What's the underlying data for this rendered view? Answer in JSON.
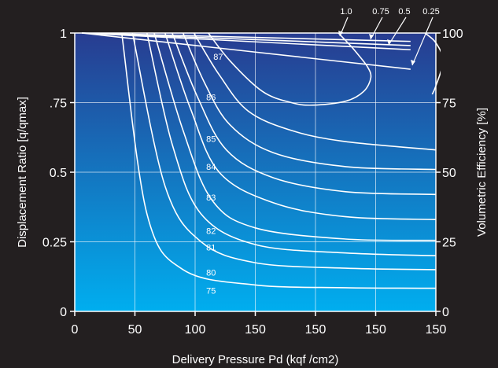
{
  "chart_data": {
    "type": "line",
    "title": "",
    "xlabel": "Delivery Pressure Pd (kqf /cm2)",
    "ylabel": "Displacement Ratio [q/qmax]",
    "y2label": "Volumetric Efficiency [%]",
    "x_tick_labels": [
      "0",
      "50",
      "100",
      "150",
      "150",
      "150",
      "150"
    ],
    "y_tick_labels": [
      "0",
      "0.25",
      "0.5",
      ".75",
      "1"
    ],
    "y2_tick_labels": [
      "0",
      "25",
      "50",
      "75",
      "100"
    ],
    "ylim": [
      0,
      1
    ],
    "y2lim": [
      0,
      100
    ],
    "grid": true,
    "background_gradient": [
      "#283c90",
      "#00aeef"
    ],
    "line_color": "#ffffff",
    "efficiency_contours": [
      {
        "label": "75",
        "points": [
          [
            0.13,
            1.0
          ],
          [
            0.2,
            0.35
          ],
          [
            0.3,
            0.15
          ],
          [
            0.5,
            0.095
          ],
          [
            0.75,
            0.085
          ],
          [
            1.0,
            0.083
          ]
        ],
        "label_at": [
          0.36,
          0.075
        ]
      },
      {
        "label": "80",
        "points": [
          [
            0.16,
            1.0
          ],
          [
            0.25,
            0.45
          ],
          [
            0.35,
            0.25
          ],
          [
            0.5,
            0.175
          ],
          [
            0.75,
            0.155
          ],
          [
            1.0,
            0.15
          ]
        ],
        "label_at": [
          0.36,
          0.14
        ]
      },
      {
        "label": "81",
        "points": [
          [
            0.2,
            1.0
          ],
          [
            0.27,
            0.6
          ],
          [
            0.35,
            0.35
          ],
          [
            0.5,
            0.24
          ],
          [
            0.75,
            0.21
          ],
          [
            1.0,
            0.2
          ]
        ],
        "label_at": [
          0.36,
          0.23
        ]
      },
      {
        "label": "82",
        "points": [
          [
            0.22,
            1.0
          ],
          [
            0.3,
            0.65
          ],
          [
            0.38,
            0.4
          ],
          [
            0.5,
            0.3
          ],
          [
            0.75,
            0.26
          ],
          [
            1.0,
            0.255
          ]
        ],
        "label_at": [
          0.36,
          0.29
        ]
      },
      {
        "label": "83",
        "points": [
          [
            0.25,
            1.0
          ],
          [
            0.32,
            0.73
          ],
          [
            0.4,
            0.5
          ],
          [
            0.55,
            0.39
          ],
          [
            0.75,
            0.34
          ],
          [
            1.0,
            0.33
          ]
        ],
        "label_at": [
          0.36,
          0.41
        ]
      },
      {
        "label": "84",
        "points": [
          [
            0.27,
            1.0
          ],
          [
            0.34,
            0.77
          ],
          [
            0.42,
            0.58
          ],
          [
            0.55,
            0.48
          ],
          [
            0.75,
            0.43
          ],
          [
            1.0,
            0.42
          ]
        ],
        "label_at": [
          0.36,
          0.52
        ]
      },
      {
        "label": "85",
        "points": [
          [
            0.3,
            1.0
          ],
          [
            0.36,
            0.82
          ],
          [
            0.43,
            0.67
          ],
          [
            0.55,
            0.57
          ],
          [
            0.75,
            0.52
          ],
          [
            1.0,
            0.51
          ]
        ],
        "label_at": [
          0.36,
          0.62
        ]
      },
      {
        "label": "86",
        "points": [
          [
            0.33,
            1.0
          ],
          [
            0.4,
            0.85
          ],
          [
            0.48,
            0.72
          ],
          [
            0.6,
            0.65
          ],
          [
            0.75,
            0.61
          ],
          [
            1.0,
            0.58
          ]
        ],
        "label_at": [
          0.36,
          0.77
        ]
      },
      {
        "label": "87",
        "points": [
          [
            0.37,
            1.0
          ],
          [
            0.43,
            0.9
          ],
          [
            0.52,
            0.79
          ],
          [
            0.6,
            0.75
          ],
          [
            0.66,
            0.741
          ],
          [
            0.75,
            0.755
          ],
          [
            0.8,
            0.79
          ],
          [
            0.82,
            0.84
          ],
          [
            0.81,
            0.88
          ],
          [
            0.78,
            0.93
          ],
          [
            0.76,
            0.96
          ],
          [
            0.73,
            1.0
          ]
        ],
        "label_at": [
          0.38,
          0.915
        ]
      }
    ],
    "volumetric_efficiency_lines": [
      {
        "label": "1.0",
        "end_y": 0.97
      },
      {
        "label": "0.75",
        "end_y": 0.955
      },
      {
        "label": "0.5",
        "end_y": 0.94
      },
      {
        "label": "0.25",
        "end_y": 0.87
      }
    ],
    "extra_curve": {
      "points": [
        [
          0.97,
          1.0
        ],
        [
          1.0,
          0.965
        ],
        [
          1.02,
          0.9
        ],
        [
          1.0,
          0.81
        ],
        [
          0.99,
          0.78
        ]
      ]
    }
  }
}
